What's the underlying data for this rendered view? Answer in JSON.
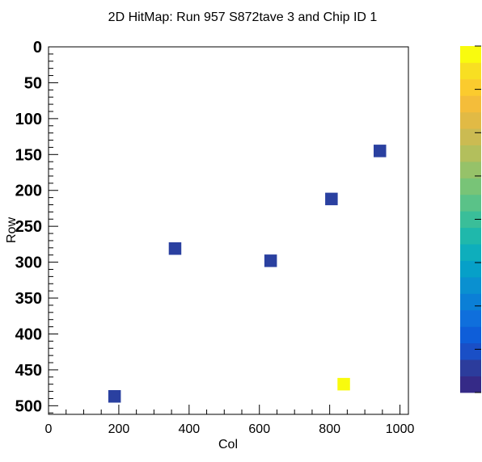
{
  "chart_data": {
    "type": "heatmap",
    "title": "2D HitMap: Run 957 S872tave 3 and Chip ID 1",
    "xlabel": "Col",
    "ylabel": "Row",
    "xlim": [
      0,
      1024
    ],
    "ylim": [
      0,
      512
    ],
    "y_inverted": true,
    "x_ticks": [
      "0",
      "200",
      "400",
      "600",
      "800",
      "1000"
    ],
    "y_ticks": [
      "0",
      "50",
      "100",
      "150",
      "200",
      "250",
      "300",
      "350",
      "400",
      "450",
      "500"
    ],
    "grid": false,
    "colorbar": {
      "palette": [
        "#352a87",
        "#2c3c9c",
        "#1a4fc6",
        "#0e5ed9",
        "#0f6fdc",
        "#0b7fd6",
        "#0a90d0",
        "#06a0c8",
        "#0eaebc",
        "#1fb8ab",
        "#3abe99",
        "#5ac288",
        "#78c477",
        "#96c269",
        "#b3bf5c",
        "#cbbb52",
        "#e1ba45",
        "#f4bd3a",
        "#fbcb2e",
        "#f8df22",
        "#f9fb0e"
      ]
    },
    "points": [
      {
        "x": 188,
        "y": 487,
        "color": "#2a40a0"
      },
      {
        "x": 360,
        "y": 281,
        "color": "#2a40a0"
      },
      {
        "x": 632,
        "y": 298,
        "color": "#2a40a0"
      },
      {
        "x": 805,
        "y": 212,
        "color": "#2a40a0"
      },
      {
        "x": 943,
        "y": 145,
        "color": "#2a40a0"
      },
      {
        "x": 840,
        "y": 470,
        "color": "#f9fb0e"
      }
    ]
  }
}
